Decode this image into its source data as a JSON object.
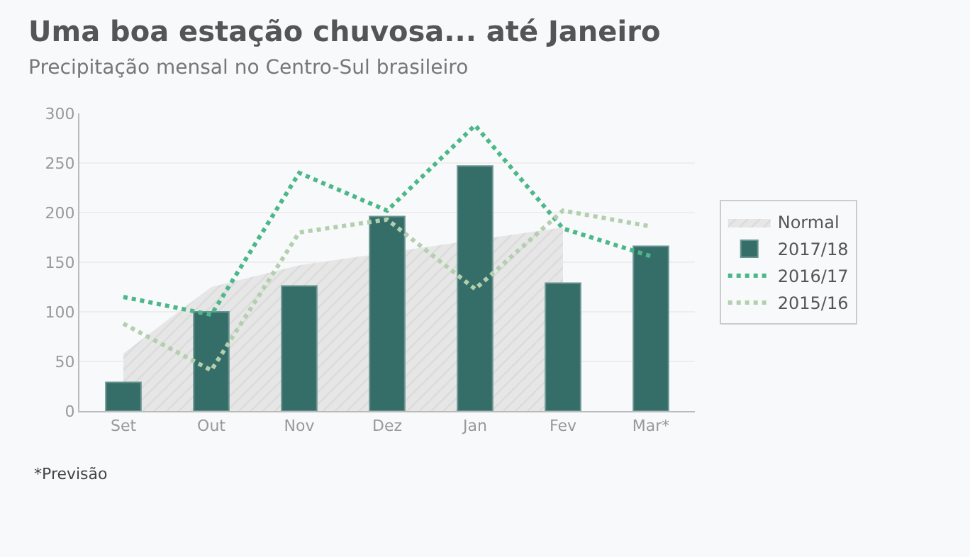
{
  "chart_data": {
    "type": "bar",
    "title": "Uma boa estação chuvosa... até Janeiro",
    "subtitle": "Precipitação mensal no Centro-Sul brasileiro",
    "categories": [
      "Set",
      "Out",
      "Nov",
      "Dez",
      "Jan",
      "Fev",
      "Mar*"
    ],
    "series": [
      {
        "name": "Normal",
        "type": "area",
        "color": "#e6e6e6",
        "values": [
          58,
          125,
          147,
          null,
          null,
          185,
          null
        ]
      },
      {
        "name": "2017/18",
        "color": "#356e69",
        "values": [
          29,
          100,
          126,
          196,
          247,
          129,
          166
        ]
      },
      {
        "name": "2016/17",
        "type": "line",
        "color": "#4cb88a",
        "line_style": "dotted",
        "values": [
          115,
          97,
          240,
          202,
          288,
          184,
          156
        ]
      },
      {
        "name": "2015/16",
        "type": "line",
        "color": "#b3cfae",
        "line_style": "dotted",
        "values": [
          88,
          41,
          180,
          193,
          123,
          202,
          186
        ]
      }
    ],
    "ylim": [
      0,
      300
    ],
    "yticks": [
      0,
      50,
      100,
      150,
      200,
      250,
      300
    ],
    "grid": "y",
    "legend": "right",
    "annotations": [
      "*Previsão"
    ]
  }
}
